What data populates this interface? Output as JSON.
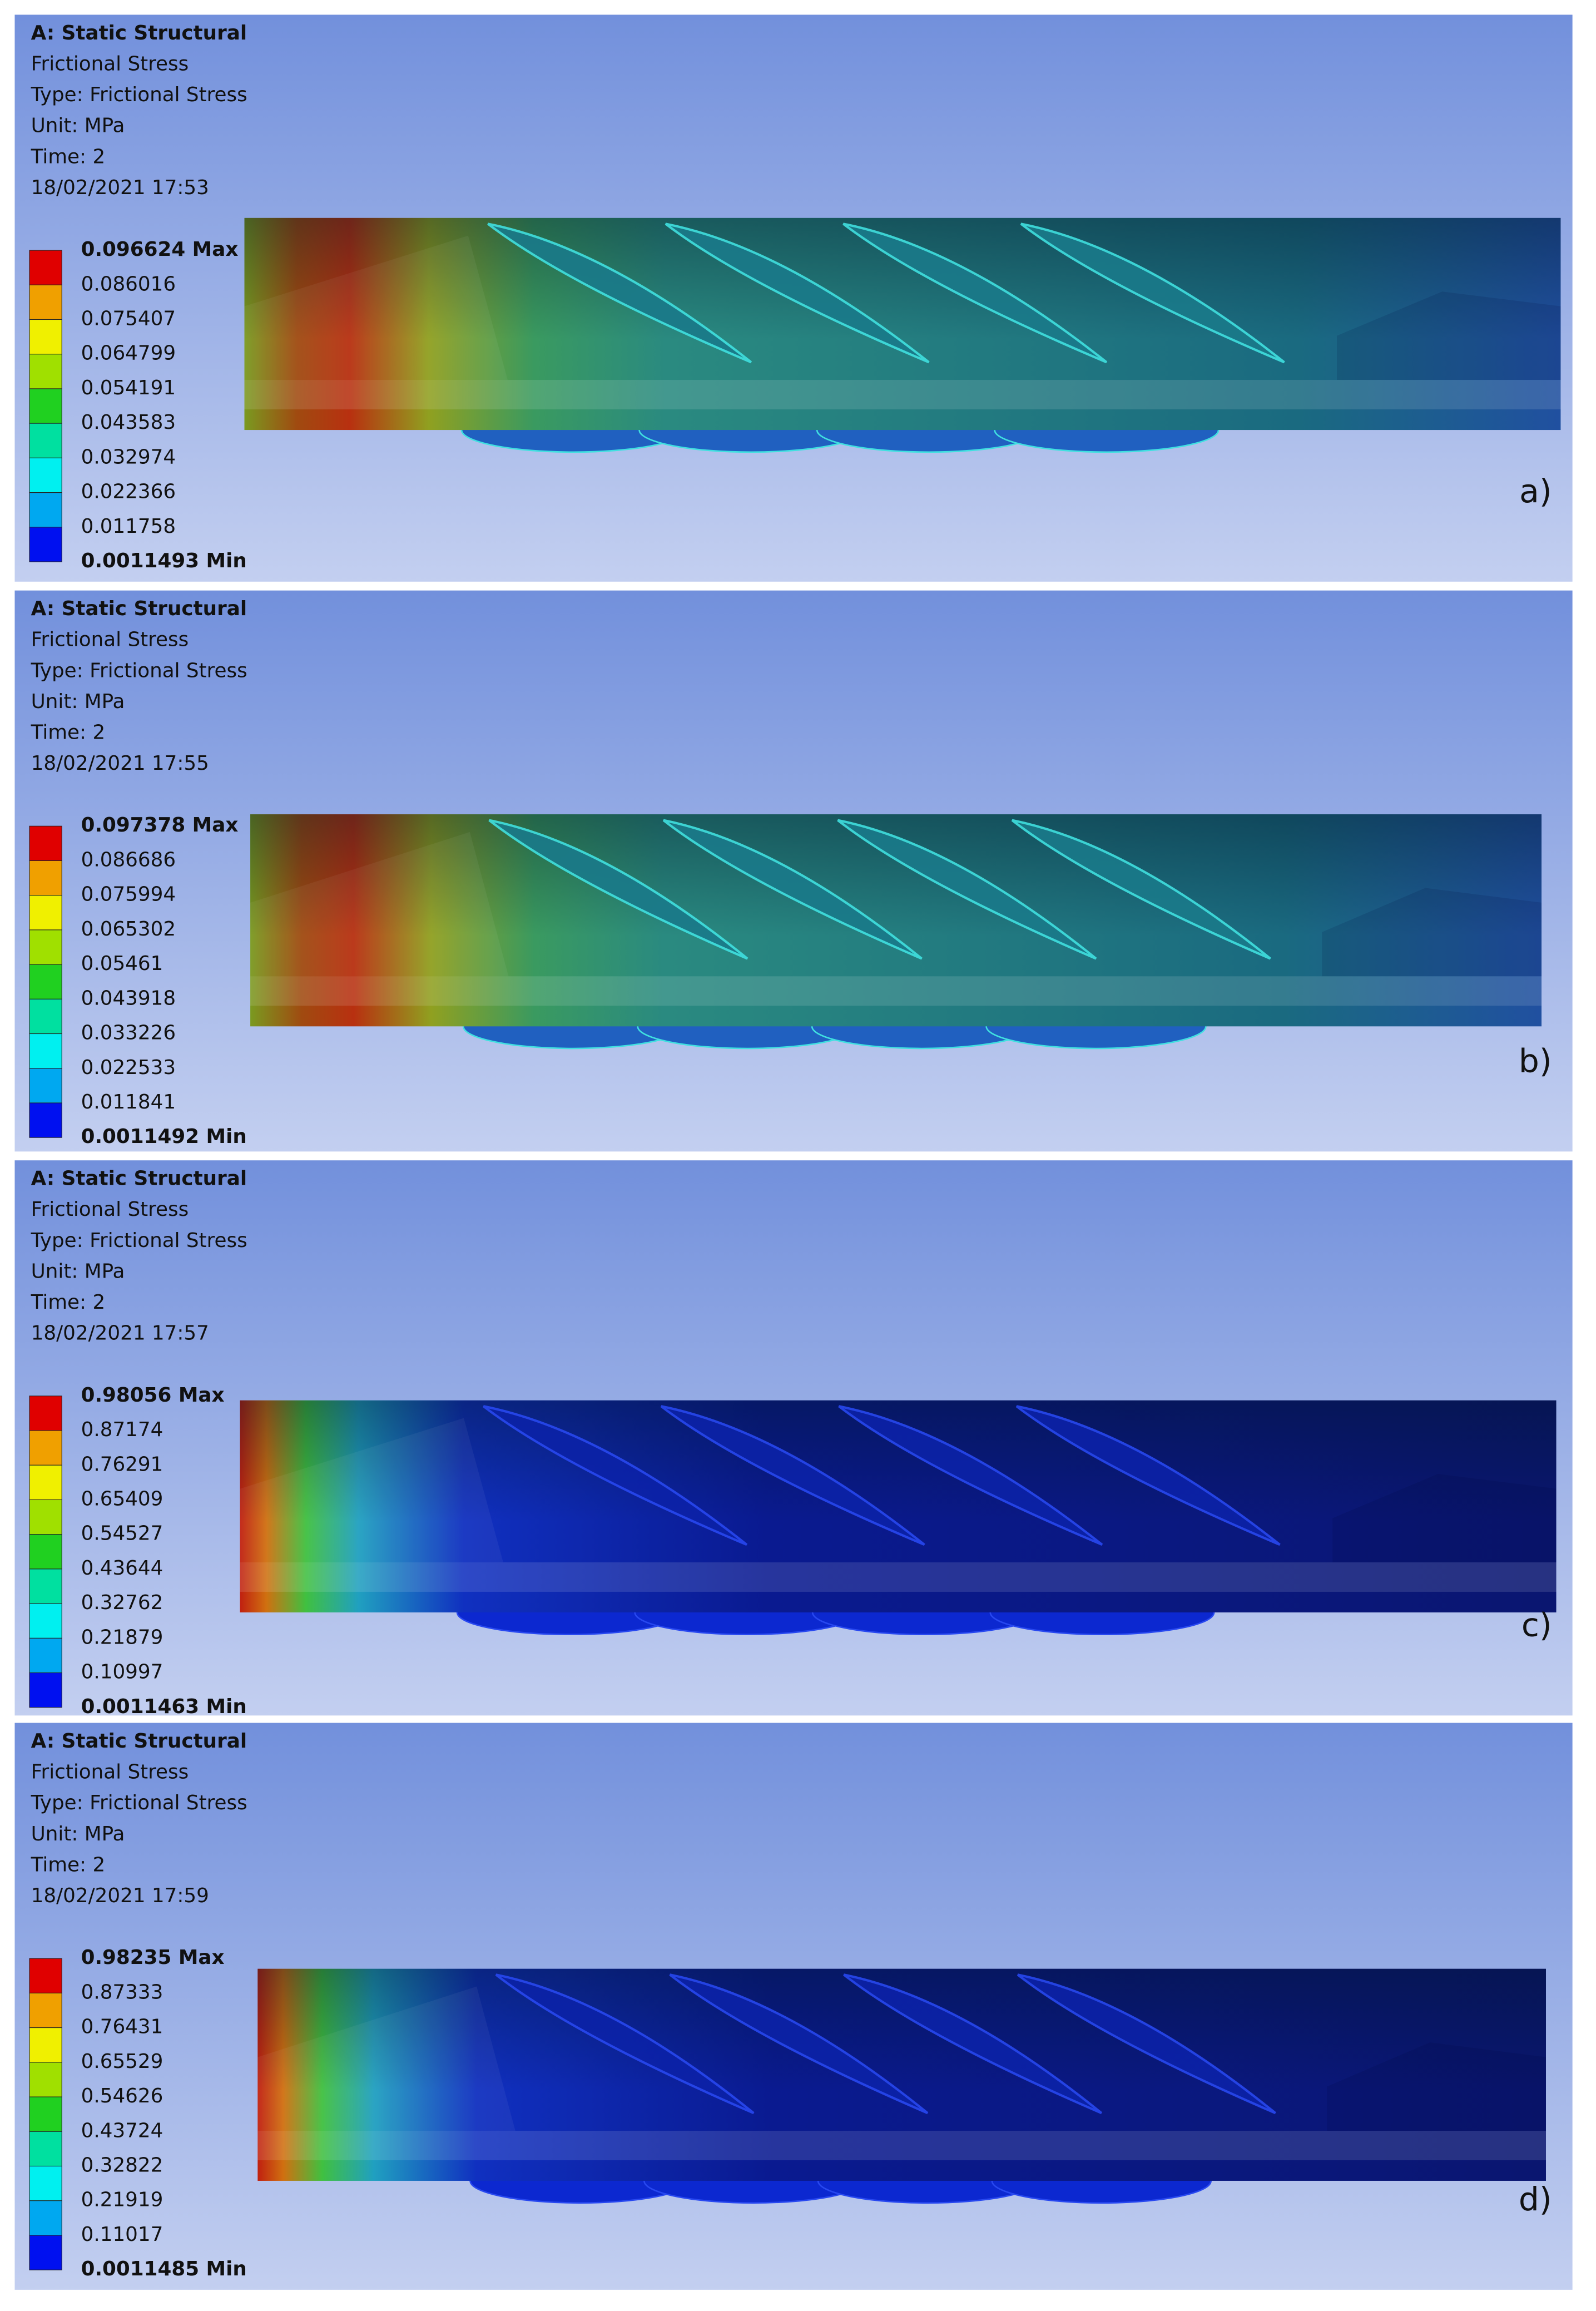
{
  "panels": [
    {
      "header": [
        "A: Static Structural",
        "Frictional Stress",
        "Type: Frictional Stress",
        "Unit: MPa",
        "Time: 2",
        "18/02/2021 17:53"
      ],
      "legend": [
        "0.096624 Max",
        "0.086016",
        "0.075407",
        "0.064799",
        "0.054191",
        "0.043583",
        "0.032974",
        "0.022366",
        "0.011758",
        "0.0011493 Min"
      ],
      "label": "a)"
    },
    {
      "header": [
        "A: Static Structural",
        "Frictional Stress",
        "Type: Frictional Stress",
        "Unit: MPa",
        "Time: 2",
        "18/02/2021 17:55"
      ],
      "legend": [
        "0.097378 Max",
        "0.086686",
        "0.075994",
        "0.065302",
        "0.05461",
        "0.043918",
        "0.033226",
        "0.022533",
        "0.011841",
        "0.0011492 Min"
      ],
      "label": "b)"
    },
    {
      "header": [
        "A: Static Structural",
        "Frictional Stress",
        "Type: Frictional Stress",
        "Unit: MPa",
        "Time: 2",
        "18/02/2021 17:57"
      ],
      "legend": [
        "0.98056 Max",
        "0.87174",
        "0.76291",
        "0.65409",
        "0.54527",
        "0.43644",
        "0.32762",
        "0.21879",
        "0.10997",
        "0.0011463 Min"
      ],
      "label": "c)"
    },
    {
      "header": [
        "A: Static Structural",
        "Frictional Stress",
        "Type: Frictional Stress",
        "Unit: MPa",
        "Time: 2",
        "18/02/2021 17:59"
      ],
      "legend": [
        "0.98235 Max",
        "0.87333",
        "0.76431",
        "0.65529",
        "0.54626",
        "0.43724",
        "0.32822",
        "0.21919",
        "0.11017",
        "0.0011485 Min"
      ],
      "label": "d)"
    }
  ]
}
